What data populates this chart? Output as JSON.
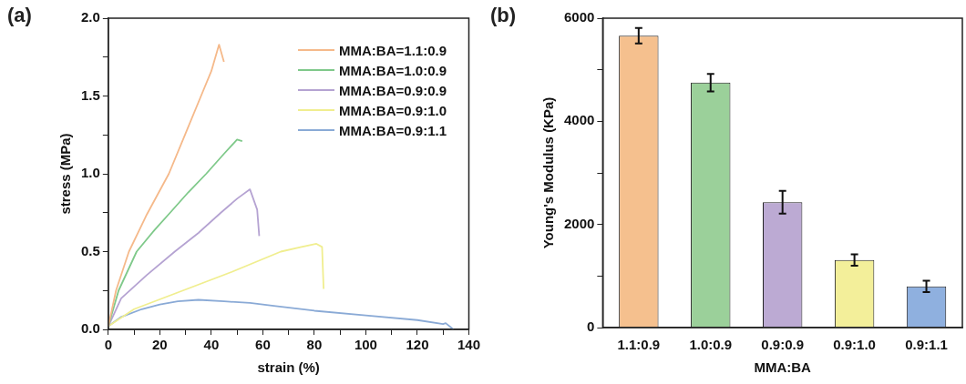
{
  "chart_data": [
    {
      "type": "line",
      "title": "(a)",
      "xlabel": "strain (%)",
      "ylabel": "stress (MPa)",
      "legend": "top right",
      "marker": "none",
      "line_style": "solid",
      "grid": false,
      "xlim": [
        0,
        140
      ],
      "xticks": [
        0,
        {
          "value": 10,
          "label": null
        },
        20,
        {
          "value": 30,
          "label": null
        },
        40,
        {
          "value": 50,
          "label": null
        },
        60,
        {
          "value": 70,
          "label": null
        },
        80,
        {
          "value": 90,
          "label": null
        },
        100,
        {
          "value": 110,
          "label": null
        },
        120,
        {
          "value": 130,
          "label": null
        },
        140
      ],
      "ylim": [
        0,
        2
      ],
      "yticks": [
        {
          "value": 0,
          "label": "0.0"
        },
        {
          "value": 0.25,
          "label": null
        },
        0.5,
        {
          "value": 0.75,
          "label": null
        },
        {
          "value": 1,
          "label": "1.0"
        },
        {
          "value": 1.25,
          "label": null
        },
        1.5,
        {
          "value": 1.75,
          "label": null
        },
        {
          "value": 2,
          "label": "2.0"
        }
      ],
      "series": [
        {
          "name": "MMA:BA=1.1:0.9",
          "color": "#f5b98a",
          "x": [
            0,
            3,
            8,
            15,
            23.5,
            30,
            36,
            40,
            43,
            44.9
          ],
          "values": [
            0.02,
            0.25,
            0.5,
            0.74,
            1.0,
            1.26,
            1.5,
            1.66,
            1.83,
            1.72
          ]
        },
        {
          "name": "MMA:BA=1.0:0.9",
          "color": "#7fc98a",
          "x": [
            0,
            4,
            11,
            18,
            24,
            31,
            38,
            45,
            50,
            52
          ],
          "values": [
            0.02,
            0.25,
            0.5,
            0.64,
            0.75,
            0.88,
            1.0,
            1.13,
            1.22,
            1.21
          ]
        },
        {
          "name": "MMA:BA=0.9:0.9",
          "color": "#b5a3d2",
          "x": [
            0,
            5,
            15,
            25.8,
            35,
            43.7,
            50,
            55,
            57.8,
            58.6
          ],
          "values": [
            0.02,
            0.2,
            0.35,
            0.5,
            0.62,
            0.75,
            0.84,
            0.9,
            0.77,
            0.6
          ]
        },
        {
          "name": "MMA:BA=0.9:1.0",
          "color": "#f0ee8f",
          "x": [
            0,
            10,
            29,
            48,
            67,
            75,
            80.8,
            83,
            83.6
          ],
          "values": [
            0.02,
            0.13,
            0.25,
            0.37,
            0.5,
            0.53,
            0.55,
            0.53,
            0.26
          ]
        },
        {
          "name": "MMA:BA=0.9:1.1",
          "color": "#8aaad6",
          "x": [
            0,
            5,
            13,
            20,
            27,
            35,
            45,
            55,
            65,
            80,
            100,
            120,
            130,
            131,
            134
          ],
          "values": [
            0.02,
            0.08,
            0.13,
            0.16,
            0.18,
            0.19,
            0.18,
            0.17,
            0.15,
            0.12,
            0.09,
            0.06,
            0.035,
            0.04,
            0.0
          ]
        }
      ]
    },
    {
      "type": "bar",
      "title": "(b)",
      "xlabel": "MMA:BA",
      "ylabel": "Young's Modulus (KPa)",
      "grid": false,
      "categories": [
        "1.1:0.9",
        "1.0:0.9",
        "0.9:0.9",
        "0.9:1.0",
        "0.9:1.1"
      ],
      "values": [
        5660,
        4750,
        2430,
        1310,
        800
      ],
      "errors": [
        150,
        170,
        220,
        110,
        110
      ],
      "colors": [
        "#f5c08e",
        "#9bd09a",
        "#bcaad3",
        "#f3ef9a",
        "#8fb0df"
      ],
      "ylim": [
        0,
        6000
      ],
      "yticks": [
        0,
        {
          "value": 1000,
          "label": null
        },
        2000,
        {
          "value": 3000,
          "label": null
        },
        4000,
        {
          "value": 5000,
          "label": null
        },
        6000
      ]
    }
  ]
}
